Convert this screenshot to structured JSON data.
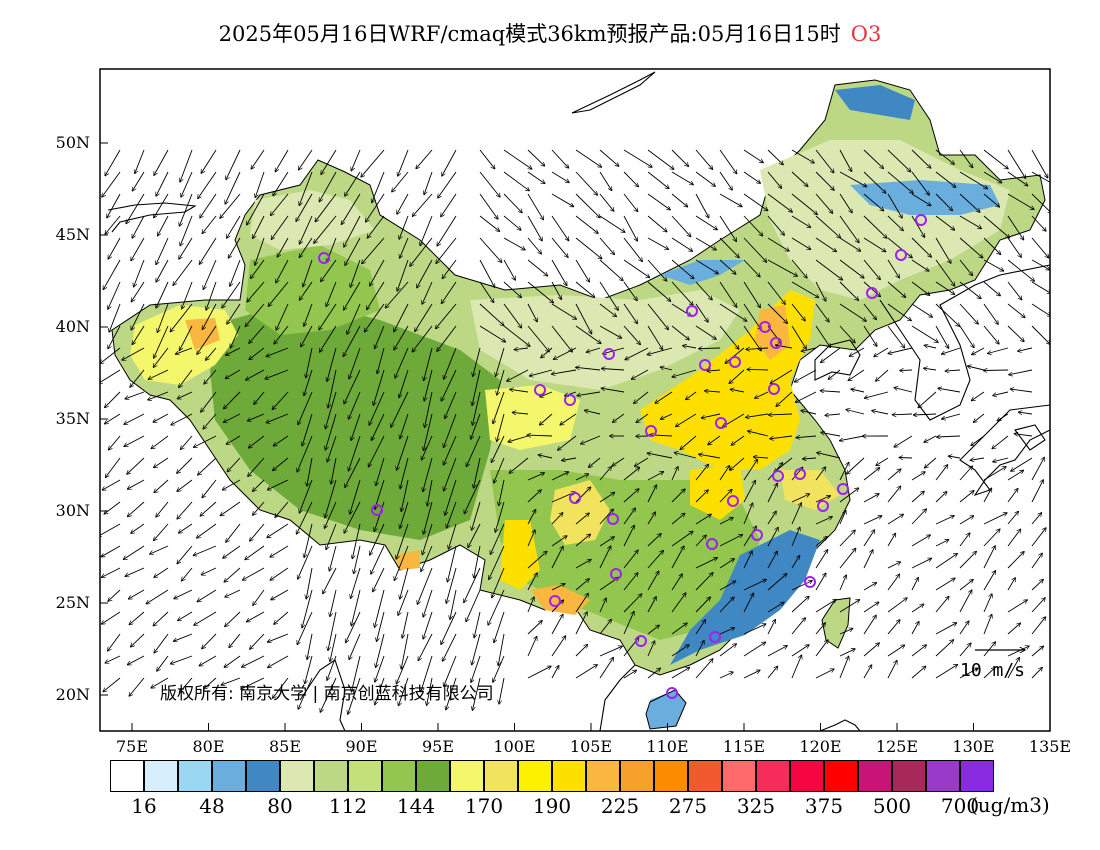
{
  "title": {
    "main": "2025年05月16日WRF/cmaq模式36km预报产品:05月16日15时",
    "pollutant": "O3",
    "pollutant_color": "#e8333a"
  },
  "axes": {
    "lat_labels": [
      "50N",
      "45N",
      "40N",
      "35N",
      "30N",
      "25N",
      "20N"
    ],
    "lon_labels": [
      "75E",
      "80E",
      "85E",
      "90E",
      "95E",
      "100E",
      "105E",
      "110E",
      "115E",
      "120E",
      "125E",
      "130E",
      "135E"
    ]
  },
  "wind_scale": {
    "label": "10 m/s",
    "icon": "arrow-right-icon"
  },
  "copyright": "版权所有: 南京大学 | 南京创蓝科技有限公司",
  "legend": {
    "colors": [
      "#ffffff",
      "#d6eefb",
      "#9ad7f3",
      "#6aaede",
      "#4088c4",
      "#dbe8b2",
      "#bcd884",
      "#c4e07a",
      "#92c64e",
      "#6eaa3a",
      "#f4f76c",
      "#f2e35e",
      "#fff200",
      "#fde000",
      "#f9b73f",
      "#f6a22a",
      "#fb8c00",
      "#f05a2e",
      "#ff6a6d",
      "#f62d5a",
      "#f50541",
      "#ff0000",
      "#c81379",
      "#a8285a",
      "#9a3ac9",
      "#8a2be2"
    ],
    "labels": [
      "16",
      "48",
      "80",
      "112",
      "144",
      "170",
      "190",
      "225",
      "275",
      "325",
      "375",
      "500",
      "700"
    ],
    "unit": "(ug/m3)"
  },
  "stations_color": "#a020f0"
}
